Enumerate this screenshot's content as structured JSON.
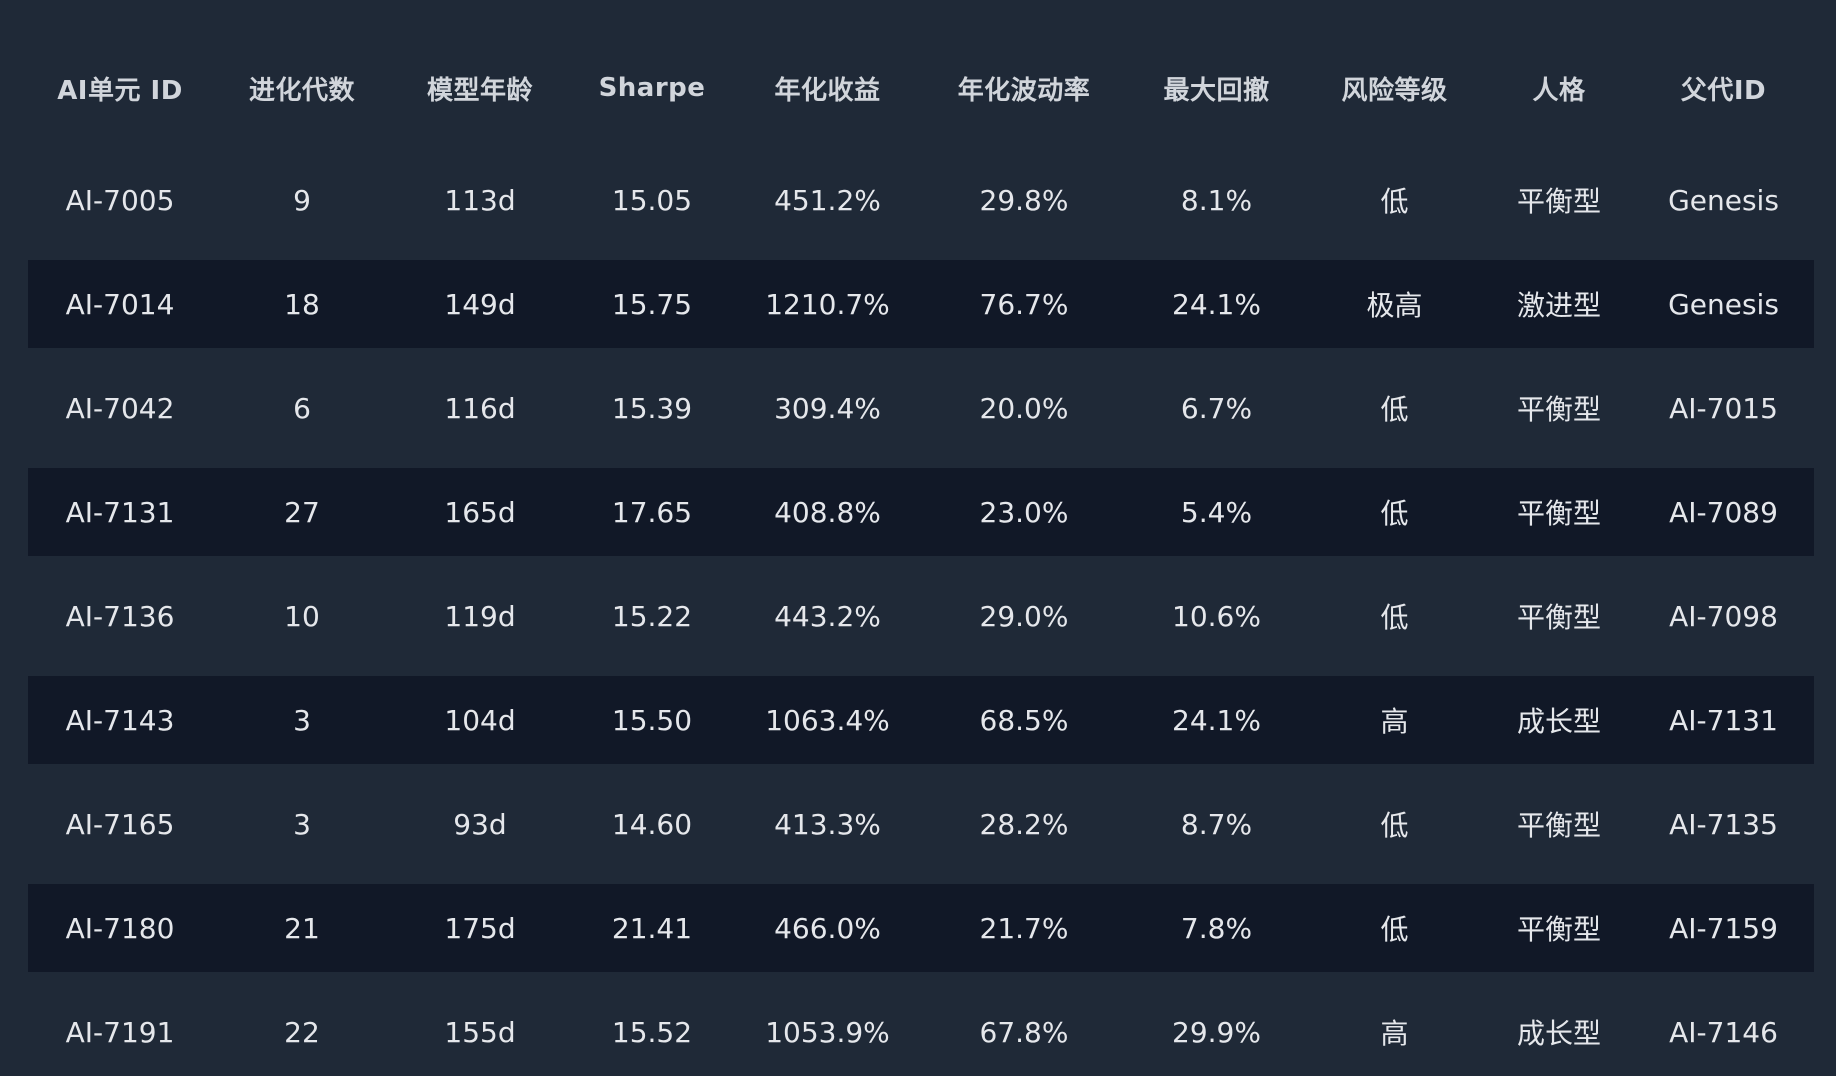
{
  "table": {
    "headers": [
      "AI单元 ID",
      "进化代数",
      "模型年龄",
      "Sharpe",
      "年化收益",
      "年化波动率",
      "最大回撤",
      "风险等级",
      "人格",
      "父代ID"
    ],
    "rows": [
      [
        "AI-7005",
        "9",
        "113d",
        "15.05",
        "451.2%",
        "29.8%",
        "8.1%",
        "低",
        "平衡型",
        "Genesis"
      ],
      [
        "AI-7014",
        "18",
        "149d",
        "15.75",
        "1210.7%",
        "76.7%",
        "24.1%",
        "极高",
        "激进型",
        "Genesis"
      ],
      [
        "AI-7042",
        "6",
        "116d",
        "15.39",
        "309.4%",
        "20.0%",
        "6.7%",
        "低",
        "平衡型",
        "AI-7015"
      ],
      [
        "AI-7131",
        "27",
        "165d",
        "17.65",
        "408.8%",
        "23.0%",
        "5.4%",
        "低",
        "平衡型",
        "AI-7089"
      ],
      [
        "AI-7136",
        "10",
        "119d",
        "15.22",
        "443.2%",
        "29.0%",
        "10.6%",
        "低",
        "平衡型",
        "AI-7098"
      ],
      [
        "AI-7143",
        "3",
        "104d",
        "15.50",
        "1063.4%",
        "68.5%",
        "24.1%",
        "高",
        "成长型",
        "AI-7131"
      ],
      [
        "AI-7165",
        "3",
        "93d",
        "14.60",
        "413.3%",
        "28.2%",
        "8.7%",
        "低",
        "平衡型",
        "AI-7135"
      ],
      [
        "AI-7180",
        "21",
        "175d",
        "21.41",
        "466.0%",
        "21.7%",
        "7.8%",
        "低",
        "平衡型",
        "AI-7159"
      ],
      [
        "AI-7191",
        "22",
        "155d",
        "15.52",
        "1053.9%",
        "67.8%",
        "29.9%",
        "高",
        "成长型",
        "AI-7146"
      ]
    ]
  },
  "colors": {
    "background": "#1f2937",
    "striped_row": "#111827",
    "header_text": "#d1d5db",
    "cell_text": "#e5e7eb"
  }
}
